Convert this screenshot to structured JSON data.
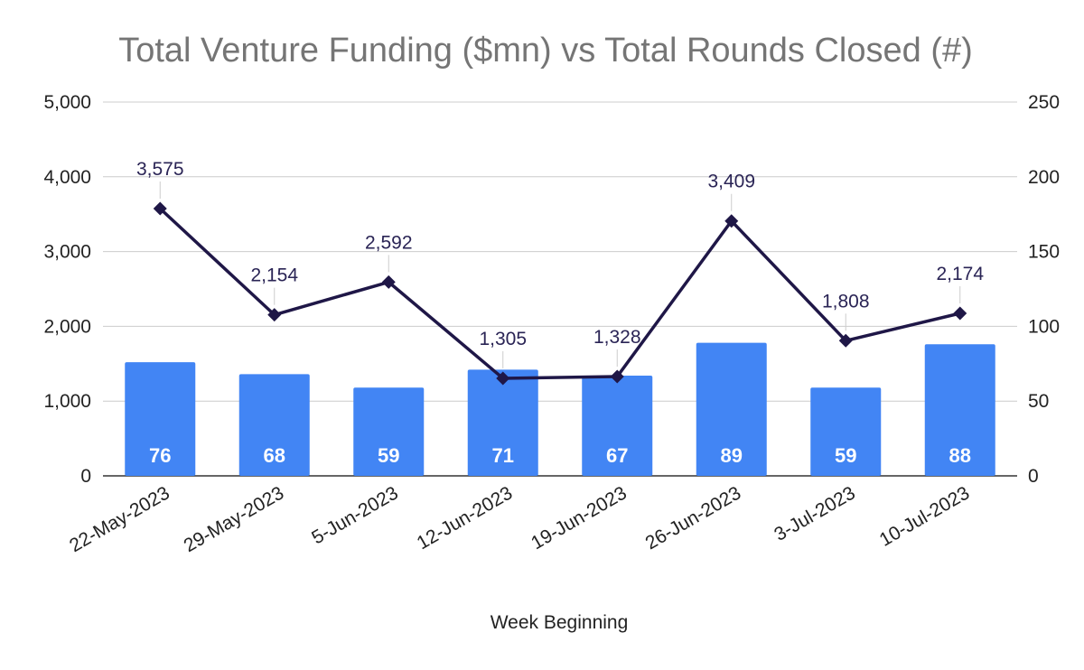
{
  "chart_data": {
    "type": "bar",
    "title": "Total Venture Funding ($mn) vs Total Rounds Closed (#)",
    "xlabel": "Week Beginning",
    "ylabel": "",
    "categories": [
      "22-May-2023",
      "29-May-2023",
      "5-Jun-2023",
      "12-Jun-2023",
      "19-Jun-2023",
      "26-Jun-2023",
      "3-Jul-2023",
      "10-Jul-2023"
    ],
    "series": [
      {
        "name": "Total Rounds Closed (#)",
        "type": "bar",
        "axis": "right",
        "values": [
          76,
          68,
          59,
          71,
          67,
          89,
          59,
          88
        ],
        "labels": [
          "76",
          "68",
          "59",
          "71",
          "67",
          "89",
          "59",
          "88"
        ],
        "color": "#4285f4"
      },
      {
        "name": "Total Venture Funding ($mn)",
        "type": "line",
        "axis": "left",
        "values": [
          3575,
          2154,
          2592,
          1305,
          1328,
          3409,
          1808,
          2174
        ],
        "labels": [
          "3,575",
          "2,154",
          "2,592",
          "1,305",
          "1,328",
          "3,409",
          "1,808",
          "2,174"
        ],
        "color": "#1f1747"
      }
    ],
    "y_left": {
      "min": 0,
      "max": 5000,
      "ticks": [
        "0",
        "1,000",
        "2,000",
        "3,000",
        "4,000",
        "5,000"
      ],
      "tick_values": [
        0,
        1000,
        2000,
        3000,
        4000,
        5000
      ]
    },
    "y_right": {
      "min": 0,
      "max": 250,
      "ticks": [
        "0",
        "50",
        "100",
        "150",
        "200",
        "250"
      ],
      "tick_values": [
        0,
        50,
        100,
        150,
        200,
        250
      ]
    },
    "grid": true,
    "legend": "none"
  }
}
